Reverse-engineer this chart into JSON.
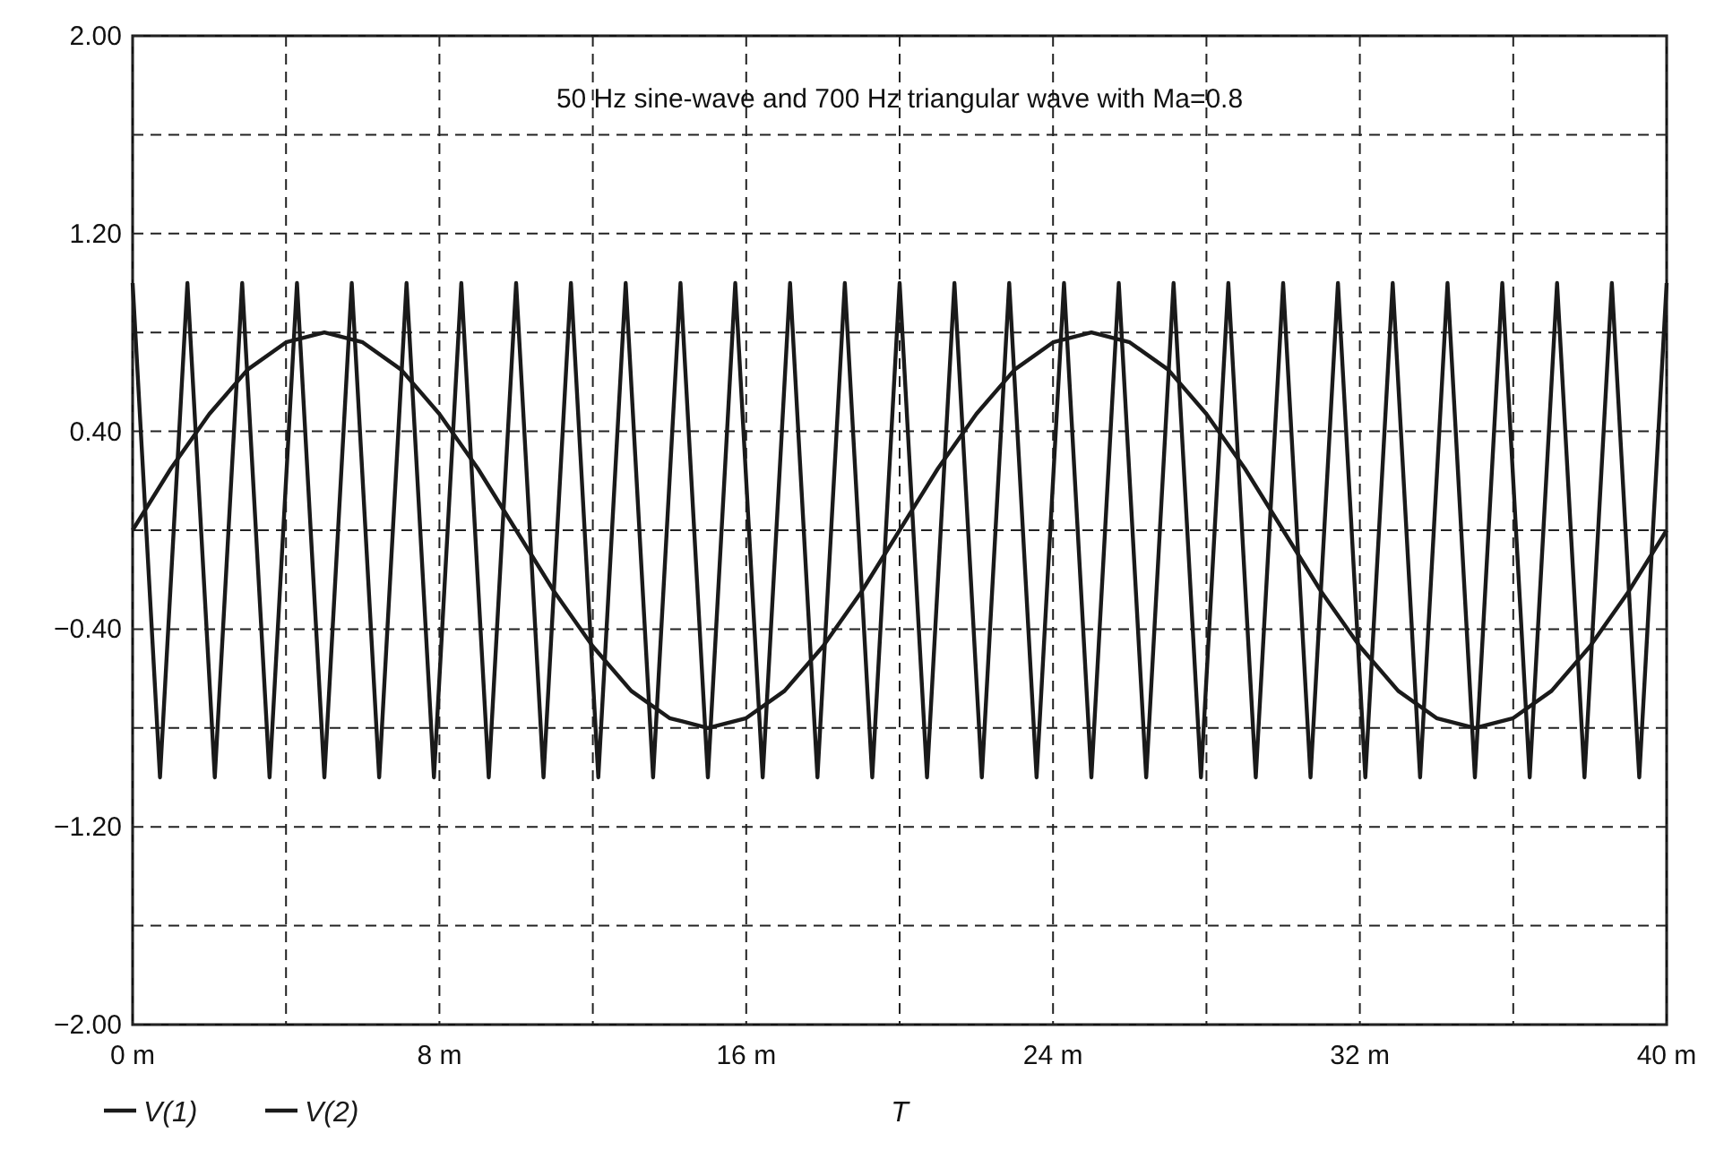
{
  "chart_data": {
    "type": "line",
    "title": "50 Hz sine-wave and 700 Hz triangular wave with Ma=0.8",
    "xlabel": "T",
    "xlim": [
      0,
      40
    ],
    "ylim": [
      -2,
      2
    ],
    "xticks": [
      {
        "value": 0,
        "label": "0 m"
      },
      {
        "value": 4,
        "label": null
      },
      {
        "value": 8,
        "label": "8 m"
      },
      {
        "value": 12,
        "label": null
      },
      {
        "value": 16,
        "label": "16 m"
      },
      {
        "value": 20,
        "label": null
      },
      {
        "value": 24,
        "label": "24 m"
      },
      {
        "value": 28,
        "label": null
      },
      {
        "value": 32,
        "label": "32 m"
      },
      {
        "value": 36,
        "label": null
      },
      {
        "value": 40,
        "label": "40 m"
      }
    ],
    "yticks": [
      {
        "value": -2,
        "label": "−2.00"
      },
      {
        "value": -1.6,
        "label": null
      },
      {
        "value": -1.2,
        "label": "−1.20"
      },
      {
        "value": -0.8,
        "label": null
      },
      {
        "value": -0.4,
        "label": "−0.40"
      },
      {
        "value": 0,
        "label": null
      },
      {
        "value": 0.4,
        "label": "0.40"
      },
      {
        "value": 0.8,
        "label": null
      },
      {
        "value": 1.2,
        "label": "1.20"
      },
      {
        "value": 1.6,
        "label": null
      },
      {
        "value": 2,
        "label": "2.00"
      }
    ],
    "grid": true,
    "legend": "bottom left",
    "line_style": "solid",
    "series": [
      {
        "name": "V(1)",
        "color": "#1a1a1a",
        "x": [
          0,
          1,
          2,
          3,
          4,
          5,
          6,
          7,
          8,
          9,
          10,
          11,
          12,
          13,
          14,
          15,
          16,
          17,
          18,
          19,
          20,
          21,
          22,
          23,
          24,
          25,
          26,
          27,
          28,
          29,
          30,
          31,
          32,
          33,
          34,
          35,
          36,
          37,
          38,
          39,
          40
        ],
        "values": [
          0,
          0.25,
          0.47,
          0.65,
          0.76,
          0.8,
          0.76,
          0.65,
          0.47,
          0.25,
          0,
          -0.25,
          -0.47,
          -0.65,
          -0.76,
          -0.8,
          -0.76,
          -0.65,
          -0.47,
          -0.25,
          0,
          0.25,
          0.47,
          0.65,
          0.76,
          0.8,
          0.76,
          0.65,
          0.47,
          0.25,
          0,
          -0.25,
          -0.47,
          -0.65,
          -0.76,
          -0.8,
          -0.76,
          -0.65,
          -0.47,
          -0.25,
          0
        ]
      },
      {
        "name": "V(2)",
        "color": "#1a1a1a",
        "x": [
          0,
          0.714,
          1.429,
          2.143,
          2.857,
          3.571,
          4.286,
          5,
          5.714,
          6.429,
          7.143,
          7.857,
          8.571,
          9.286,
          10,
          10.714,
          11.429,
          12.143,
          12.857,
          13.571,
          14.286,
          15,
          15.714,
          16.429,
          17.143,
          17.857,
          18.571,
          19.286,
          20,
          20.714,
          21.429,
          22.143,
          22.857,
          23.571,
          24.286,
          25,
          25.714,
          26.429,
          27.143,
          27.857,
          28.571,
          29.286,
          30,
          30.714,
          31.429,
          32.143,
          32.857,
          33.571,
          34.286,
          35,
          35.714,
          36.429,
          37.143,
          37.857,
          38.571,
          39.286,
          40
        ],
        "values": [
          1,
          -1,
          1,
          -1,
          1,
          -1,
          1,
          -1,
          1,
          -1,
          1,
          -1,
          1,
          -1,
          1,
          -1,
          1,
          -1,
          1,
          -1,
          1,
          -1,
          1,
          -1,
          1,
          -1,
          1,
          -1,
          1,
          -1,
          1,
          -1,
          1,
          -1,
          1,
          -1,
          1,
          -1,
          1,
          -1,
          1,
          -1,
          1,
          -1,
          1,
          -1,
          1,
          -1,
          1,
          -1,
          1,
          -1,
          1,
          -1,
          1,
          -1,
          1
        ]
      }
    ]
  }
}
